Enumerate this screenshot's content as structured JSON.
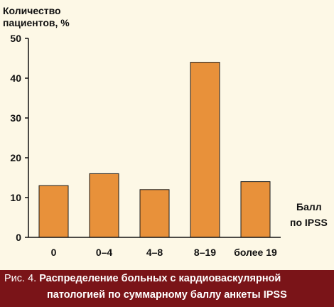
{
  "chart_data": {
    "type": "bar",
    "ylabel": [
      "Количество",
      "пациентов, %"
    ],
    "xlabel": [
      "Балл",
      "по IPSS"
    ],
    "categories": [
      "0",
      "0–4",
      "4–8",
      "8–19",
      "более 19"
    ],
    "values": [
      13,
      16,
      12,
      44,
      14
    ],
    "yticks": [
      0,
      10,
      20,
      30,
      40,
      50
    ],
    "ylim": [
      0,
      50
    ],
    "grid": false,
    "legend": "none",
    "bar_color": "#e8913a",
    "bar_stroke": "#1a1a1a"
  },
  "caption": {
    "label": "Рис. 4.",
    "line1": "Распределение больных с кардиоваскулярной",
    "line2": "патологией по суммарному баллу анкеты IPSS"
  },
  "colors": {
    "background": "#fdf8e6",
    "caption_background": "#7a1418",
    "caption_text": "#ffffff"
  }
}
